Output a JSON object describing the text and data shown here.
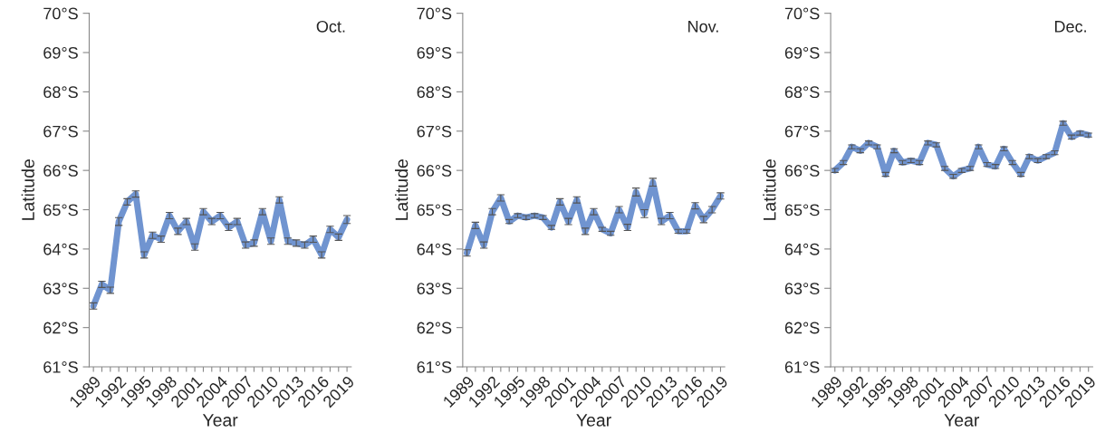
{
  "chart_data": [
    {
      "type": "line",
      "title": "Oct.",
      "xlabel": "Year",
      "ylabel": "Latitude",
      "categories": [
        "1989",
        null,
        null,
        "1992",
        null,
        null,
        "1995",
        null,
        null,
        "1998",
        null,
        null,
        "2001",
        null,
        null,
        "2004",
        null,
        null,
        "2007",
        null,
        null,
        "2010",
        null,
        null,
        "2013",
        null,
        null,
        "2016",
        null,
        null,
        "2019"
      ],
      "series": [
        {
          "color": "#7094d0",
          "values": [
            62.55,
            63.1,
            62.95,
            64.7,
            65.2,
            65.4,
            63.85,
            64.35,
            64.25,
            64.85,
            64.45,
            64.7,
            64.05,
            64.95,
            64.7,
            64.85,
            64.55,
            64.7,
            64.1,
            64.15,
            64.95,
            64.2,
            65.25,
            64.2,
            64.15,
            64.1,
            64.25,
            63.85,
            64.5,
            64.3,
            64.75
          ],
          "errors": [
            0.08,
            0.08,
            0.08,
            0.1,
            0.08,
            0.08,
            0.08,
            0.08,
            0.08,
            0.08,
            0.08,
            0.08,
            0.08,
            0.08,
            0.08,
            0.08,
            0.08,
            0.08,
            0.08,
            0.08,
            0.08,
            0.08,
            0.08,
            0.08,
            0.08,
            0.08,
            0.08,
            0.08,
            0.08,
            0.08,
            0.1
          ]
        }
      ],
      "ylim": [
        61,
        70
      ],
      "yticks": [
        {
          "value": 61,
          "label": "61°S"
        },
        {
          "value": 62,
          "label": "62°S"
        },
        {
          "value": 63,
          "label": "63°S"
        },
        {
          "value": 64,
          "label": "64°S"
        },
        {
          "value": 65,
          "label": "65°S"
        },
        {
          "value": 66,
          "label": "66°S"
        },
        {
          "value": 67,
          "label": "67°S"
        },
        {
          "value": 68,
          "label": "68°S"
        },
        {
          "value": 69,
          "label": "69°S"
        },
        {
          "value": 70,
          "label": "70°S"
        }
      ],
      "grid": false,
      "legend": false,
      "marker": "none",
      "line_style": "solid"
    },
    {
      "type": "line",
      "title": "Nov.",
      "xlabel": "Year",
      "ylabel": "Latitude",
      "categories": [
        "1989",
        null,
        null,
        "1992",
        null,
        null,
        "1995",
        null,
        null,
        "1998",
        null,
        null,
        "2001",
        null,
        null,
        "2004",
        null,
        null,
        "2007",
        null,
        null,
        "2010",
        null,
        null,
        "2013",
        null,
        null,
        "2016",
        null,
        null,
        "2019"
      ],
      "series": [
        {
          "color": "#7094d0",
          "values": [
            63.9,
            64.6,
            64.1,
            64.95,
            65.3,
            64.7,
            64.85,
            64.8,
            64.85,
            64.8,
            64.55,
            65.2,
            64.7,
            65.25,
            64.45,
            64.95,
            64.5,
            64.4,
            65.0,
            64.55,
            65.45,
            64.9,
            65.7,
            64.7,
            64.85,
            64.45,
            64.45,
            65.1,
            64.75,
            65.0,
            65.35
          ],
          "errors": [
            0.08,
            0.08,
            0.08,
            0.08,
            0.08,
            0.05,
            0.05,
            0.05,
            0.05,
            0.05,
            0.05,
            0.08,
            0.08,
            0.08,
            0.08,
            0.08,
            0.05,
            0.05,
            0.08,
            0.08,
            0.1,
            0.1,
            0.1,
            0.08,
            0.08,
            0.05,
            0.05,
            0.08,
            0.08,
            0.08,
            0.08
          ]
        }
      ],
      "ylim": [
        61,
        70
      ],
      "yticks": [
        {
          "value": 61,
          "label": "61°S"
        },
        {
          "value": 62,
          "label": "62°S"
        },
        {
          "value": 63,
          "label": "63°S"
        },
        {
          "value": 64,
          "label": "64°S"
        },
        {
          "value": 65,
          "label": "65°S"
        },
        {
          "value": 66,
          "label": "66°S"
        },
        {
          "value": 67,
          "label": "67°S"
        },
        {
          "value": 68,
          "label": "68°S"
        },
        {
          "value": 69,
          "label": "69°S"
        },
        {
          "value": 70,
          "label": "70°S"
        }
      ],
      "grid": false,
      "legend": false,
      "marker": "none",
      "line_style": "solid"
    },
    {
      "type": "line",
      "title": "Dec.",
      "xlabel": "Year",
      "ylabel": "Latitude",
      "categories": [
        "1989",
        null,
        null,
        "1992",
        null,
        null,
        "1995",
        null,
        null,
        "1998",
        null,
        null,
        "2001",
        null,
        null,
        "2004",
        null,
        null,
        "2007",
        null,
        null,
        "2010",
        null,
        null,
        "2013",
        null,
        null,
        "2016",
        null,
        null,
        "2019"
      ],
      "series": [
        {
          "color": "#7094d0",
          "values": [
            66.0,
            66.2,
            66.6,
            66.5,
            66.7,
            66.6,
            65.9,
            66.5,
            66.2,
            66.25,
            66.2,
            66.7,
            66.65,
            66.05,
            65.85,
            66.0,
            66.05,
            66.6,
            66.15,
            66.1,
            66.55,
            66.2,
            65.9,
            66.35,
            66.25,
            66.35,
            66.45,
            67.2,
            66.85,
            66.95,
            66.9
          ],
          "errors": [
            0.05,
            0.05,
            0.05,
            0.05,
            0.05,
            0.05,
            0.05,
            0.05,
            0.05,
            0.05,
            0.05,
            0.05,
            0.05,
            0.05,
            0.05,
            0.05,
            0.05,
            0.05,
            0.05,
            0.05,
            0.05,
            0.05,
            0.05,
            0.05,
            0.05,
            0.05,
            0.05,
            0.05,
            0.05,
            0.05,
            0.05
          ]
        }
      ],
      "ylim": [
        61,
        70
      ],
      "yticks": [
        {
          "value": 61,
          "label": "61°S"
        },
        {
          "value": 62,
          "label": "62°S"
        },
        {
          "value": 63,
          "label": "63°S"
        },
        {
          "value": 64,
          "label": "64°S"
        },
        {
          "value": 65,
          "label": "65°S"
        },
        {
          "value": 66,
          "label": "66°S"
        },
        {
          "value": 67,
          "label": "67°S"
        },
        {
          "value": 68,
          "label": "68°S"
        },
        {
          "value": 69,
          "label": "69°S"
        },
        {
          "value": 70,
          "label": "70°S"
        }
      ],
      "grid": false,
      "legend": false,
      "marker": "none",
      "line_style": "solid"
    }
  ]
}
